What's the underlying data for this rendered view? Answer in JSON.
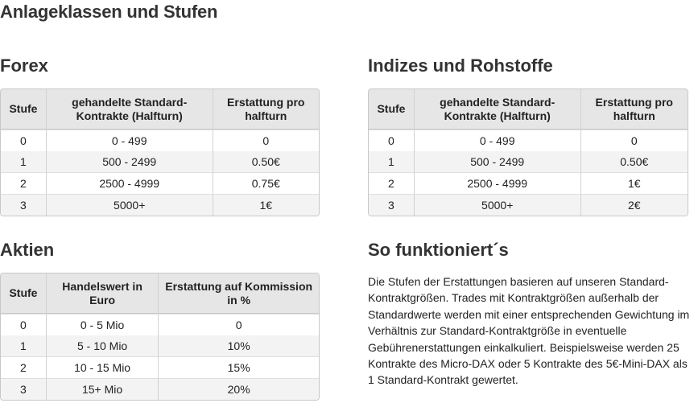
{
  "page": {
    "title": "Anlageklassen und Stufen"
  },
  "forex": {
    "title": "Forex",
    "headers": [
      "Stufe",
      "gehandelte Standard-Kontrakte (Halfturn)",
      "Erstattung pro halfturn"
    ],
    "rows": [
      [
        "0",
        "0 - 499",
        "0"
      ],
      [
        "1",
        "500 - 2499",
        "0.50€"
      ],
      [
        "2",
        "2500 - 4999",
        "0.75€"
      ],
      [
        "3",
        "5000+",
        "1€"
      ]
    ]
  },
  "indizes": {
    "title": "Indizes und Rohstoffe",
    "headers": [
      "Stufe",
      "gehandelte Standard-Kontrakte (Halfturn)",
      "Erstattung pro halfturn"
    ],
    "rows": [
      [
        "0",
        "0 - 499",
        "0"
      ],
      [
        "1",
        "500 - 2499",
        "0.50€"
      ],
      [
        "2",
        "2500 - 4999",
        "1€"
      ],
      [
        "3",
        "5000+",
        "2€"
      ]
    ]
  },
  "aktien": {
    "title": "Aktien",
    "headers": [
      "Stufe",
      "Handelswert in Euro",
      "Erstattung auf Kommission in %"
    ],
    "rows": [
      [
        "0",
        "0 - 5 Mio",
        "0"
      ],
      [
        "1",
        "5 - 10 Mio",
        "10%"
      ],
      [
        "2",
        "10 - 15 Mio",
        "15%"
      ],
      [
        "3",
        "15+ Mio",
        "20%"
      ]
    ]
  },
  "how": {
    "title": "So funktioniert´s",
    "text": "Die Stufen der Erstattungen basieren auf unseren Standard-Kontraktgrößen. Trades mit Kontraktgrößen außerhalb der Standardwerte werden mit einer entsprechenden Gewichtung im Verhältnis zur Standard-Kontraktgröße in eventuelle Gebührenerstattungen einkalkuliert. Beispielsweise werden 25 Kontrakte des Micro-DAX oder 5 Kontrakte des 5€-Mini-DAX als 1 Standard-Kontrakt gewertet."
  }
}
